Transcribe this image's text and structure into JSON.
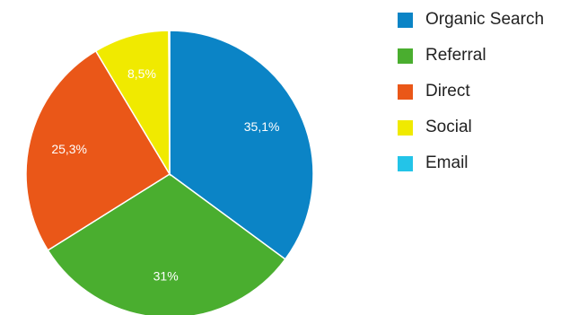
{
  "chart_data": {
    "type": "pie",
    "slices": [
      {
        "name": "Organic Search",
        "value": 35.1,
        "label": "35,1%",
        "color": "#0b84c6"
      },
      {
        "name": "Referral",
        "value": 31.0,
        "label": "31%",
        "color": "#4aae2f"
      },
      {
        "name": "Direct",
        "value": 25.3,
        "label": "25,3%",
        "color": "#ea5718"
      },
      {
        "name": "Social",
        "value": 8.5,
        "label": "8,5%",
        "color": "#f0ea00"
      },
      {
        "name": "Email",
        "value": 0.1,
        "label": "",
        "color": "#23c4e8"
      }
    ],
    "legend_position": "right"
  }
}
